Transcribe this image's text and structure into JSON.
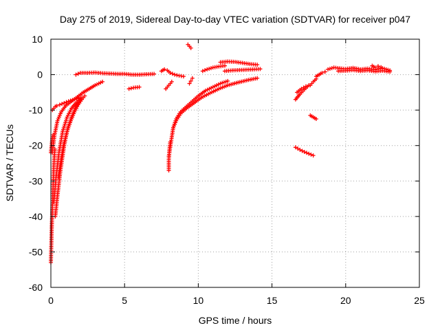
{
  "chart_data": {
    "type": "scatter",
    "title": "Day 275 of 2019, Sidereal Day-to-day VTEC variation (SDTVAR) for receiver p047",
    "xlabel": "GPS time / hours",
    "ylabel": "SDTVAR / TECUs",
    "xlim": [
      0,
      25
    ],
    "ylim": [
      -60,
      10
    ],
    "xticks": [
      0,
      5,
      10,
      15,
      20,
      25
    ],
    "yticks": [
      -60,
      -50,
      -40,
      -30,
      -20,
      -10,
      0,
      10
    ],
    "xtick_labels": [
      "0",
      "5",
      "10",
      "15",
      "20",
      "25"
    ],
    "ytick_labels": [
      "-60",
      "-50",
      "-40",
      "-30",
      "-20",
      "-10",
      "0",
      "10"
    ],
    "grid": true,
    "marker": "+",
    "color": "#ff0000",
    "tracks": [
      {
        "x": [
          0.0,
          0.03,
          0.06,
          0.1,
          0.14,
          0.18,
          0.22,
          0.27
        ],
        "y": [
          -53.0,
          -48.0,
          -43.0,
          -38.0,
          -33.0,
          -28.0,
          -24.0,
          -21.0
        ]
      },
      {
        "x": [
          0.0,
          0.05,
          0.1,
          0.15
        ],
        "y": [
          -22.0,
          -20.0,
          -18.0,
          -17.0
        ]
      },
      {
        "x": [
          0.1,
          0.2,
          0.3,
          0.4,
          0.6,
          0.9,
          1.2,
          1.6,
          2.0
        ],
        "y": [
          -10.0,
          -9.5,
          -9.0,
          -8.8,
          -8.5,
          -8.0,
          -7.5,
          -7.0,
          -6.5
        ]
      },
      {
        "x": [
          0.1,
          0.25,
          0.45,
          0.7,
          1.0,
          1.4,
          1.8,
          2.2,
          2.6,
          3.0,
          3.5
        ],
        "y": [
          -22.0,
          -17.0,
          -13.0,
          -10.5,
          -8.8,
          -7.5,
          -6.3,
          -5.0,
          -4.0,
          -3.0,
          -2.0
        ]
      },
      {
        "x": [
          0.2,
          0.35,
          0.55,
          0.8,
          1.1,
          1.4,
          1.7,
          2.0
        ],
        "y": [
          -36.0,
          -29.0,
          -22.0,
          -16.0,
          -12.0,
          -9.5,
          -8.0,
          -7.0
        ]
      },
      {
        "x": [
          0.3,
          0.45,
          0.65,
          0.9,
          1.15,
          1.4,
          1.65,
          1.9,
          2.1
        ],
        "y": [
          -40.0,
          -34.0,
          -27.0,
          -20.0,
          -15.0,
          -12.0,
          -9.5,
          -7.8,
          -6.5
        ]
      },
      {
        "x": [
          0.5,
          0.65,
          0.85,
          1.1,
          1.35,
          1.6,
          1.85,
          2.1,
          2.3
        ],
        "y": [
          -29.0,
          -25.0,
          -20.0,
          -16.0,
          -13.0,
          -10.5,
          -8.5,
          -7.0,
          -6.0
        ]
      },
      {
        "x": [
          1.7,
          2.0,
          2.5,
          3.0,
          3.5,
          4.0,
          4.5,
          5.0,
          5.5,
          6.0,
          6.5,
          7.0
        ],
        "y": [
          0.0,
          0.5,
          0.5,
          0.6,
          0.4,
          0.3,
          0.2,
          0.2,
          0.0,
          0.0,
          0.1,
          0.2
        ]
      },
      {
        "x": [
          5.3,
          5.6,
          6.0
        ],
        "y": [
          -4.0,
          -3.7,
          -3.5
        ]
      },
      {
        "x": [
          7.5,
          7.7,
          7.9,
          8.1,
          8.4,
          8.7,
          9.0
        ],
        "y": [
          1.0,
          1.5,
          1.2,
          0.5,
          0.0,
          -0.3,
          -0.5
        ]
      },
      {
        "x": [
          7.8,
          8.0,
          8.2
        ],
        "y": [
          -4.0,
          -3.0,
          -2.0
        ]
      },
      {
        "x": [
          8.0,
          8.0,
          8.05,
          8.1
        ],
        "y": [
          -27.0,
          -24.0,
          -21.0,
          -19.0
        ]
      },
      {
        "x": [
          8.0,
          8.15,
          8.3,
          8.5,
          8.8,
          9.2,
          9.6,
          10.0,
          10.5,
          11.0,
          11.5,
          12.0
        ],
        "y": [
          -23.0,
          -19.0,
          -15.0,
          -12.5,
          -10.5,
          -9.0,
          -7.5,
          -6.0,
          -4.5,
          -3.5,
          -2.5,
          -1.8
        ]
      },
      {
        "x": [
          8.3,
          8.5,
          8.8,
          9.2,
          9.7,
          10.2,
          10.8,
          11.4,
          12.0,
          12.7,
          13.4,
          14.0
        ],
        "y": [
          -15.0,
          -13.0,
          -11.0,
          -9.5,
          -8.0,
          -6.5,
          -5.2,
          -4.0,
          -3.0,
          -2.2,
          -1.5,
          -1.0
        ]
      },
      {
        "x": [
          9.3,
          9.4,
          9.5
        ],
        "y": [
          8.5,
          8.0,
          7.5
        ]
      },
      {
        "x": [
          9.4,
          9.5,
          9.6
        ],
        "y": [
          -2.5,
          -1.8,
          -1.0
        ]
      },
      {
        "x": [
          10.3,
          10.6,
          11.0,
          11.4,
          11.8
        ],
        "y": [
          1.0,
          1.5,
          2.0,
          2.3,
          2.5
        ]
      },
      {
        "x": [
          11.5,
          12.0,
          12.5,
          13.0,
          13.5,
          14.0
        ],
        "y": [
          3.5,
          3.7,
          3.6,
          3.3,
          3.0,
          2.8
        ]
      },
      {
        "x": [
          11.8,
          12.3,
          12.8,
          13.3,
          13.8,
          14.2
        ],
        "y": [
          1.0,
          1.2,
          1.3,
          1.4,
          1.5,
          1.6
        ]
      },
      {
        "x": [
          16.6,
          16.9,
          17.2,
          17.5
        ],
        "y": [
          -7.0,
          -5.5,
          -4.2,
          -3.0
        ]
      },
      {
        "x": [
          16.7,
          17.0,
          17.3
        ],
        "y": [
          -5.0,
          -4.0,
          -3.3
        ]
      },
      {
        "x": [
          17.6,
          17.8,
          18.0
        ],
        "y": [
          -3.0,
          -2.0,
          -1.2
        ]
      },
      {
        "x": [
          17.6,
          17.8,
          18.0
        ],
        "y": [
          -11.5,
          -12.0,
          -12.5
        ]
      },
      {
        "x": [
          16.6,
          16.9,
          17.2,
          17.5,
          17.8
        ],
        "y": [
          -20.5,
          -21.2,
          -21.8,
          -22.3,
          -22.8
        ]
      },
      {
        "x": [
          18.0,
          18.2,
          18.4,
          18.6
        ],
        "y": [
          -0.5,
          0.0,
          0.5,
          0.8
        ]
      },
      {
        "x": [
          18.8,
          19.2,
          19.6,
          20.0,
          20.5,
          21.0,
          21.5,
          22.0,
          22.5,
          23.0
        ],
        "y": [
          1.5,
          2.0,
          1.8,
          1.6,
          1.9,
          1.5,
          1.7,
          1.4,
          1.8,
          1.2
        ]
      },
      {
        "x": [
          19.5,
          20.0,
          20.5,
          21.0,
          21.5,
          22.0,
          22.5,
          23.0
        ],
        "y": [
          1.0,
          1.1,
          1.3,
          1.0,
          1.2,
          0.9,
          1.1,
          0.8
        ]
      },
      {
        "x": [
          21.8,
          22.0,
          22.2,
          22.4
        ],
        "y": [
          2.5,
          2.0,
          2.4,
          2.1
        ]
      }
    ]
  }
}
